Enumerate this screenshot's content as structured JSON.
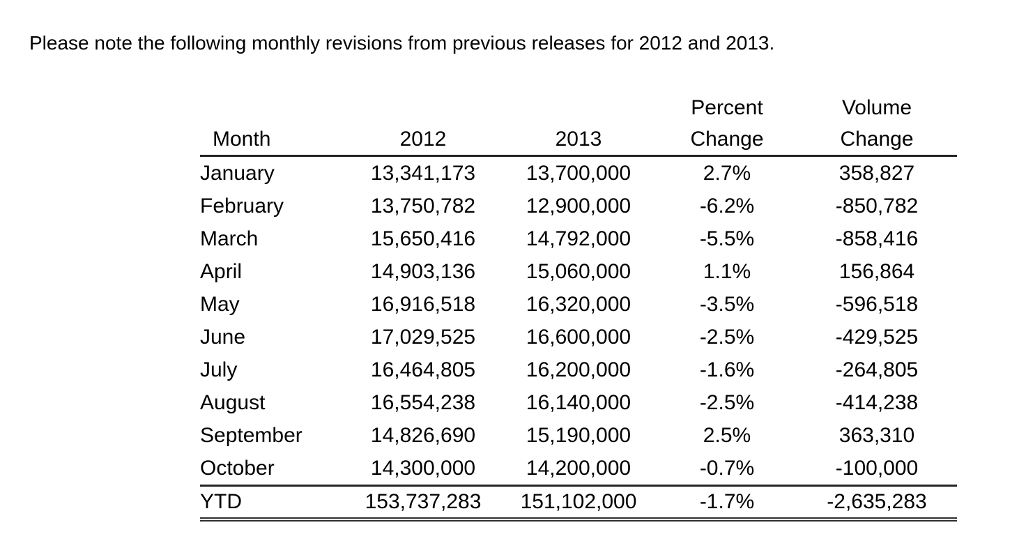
{
  "title": "Please note the following monthly revisions from previous releases for 2012 and 2013.",
  "table": {
    "headers": [
      {
        "line1": "",
        "line2": "Month"
      },
      {
        "line1": "",
        "line2": "2012"
      },
      {
        "line1": "",
        "line2": "2013"
      },
      {
        "line1": "Percent",
        "line2": "Change"
      },
      {
        "line1": "Volume",
        "line2": "Change"
      }
    ],
    "rows": [
      {
        "month": "January",
        "v2012": "13,341,173",
        "v2013": "13,700,000",
        "pct": "2.7%",
        "vol": "358,827"
      },
      {
        "month": "February",
        "v2012": "13,750,782",
        "v2013": "12,900,000",
        "pct": "-6.2%",
        "vol": "-850,782"
      },
      {
        "month": "March",
        "v2012": "15,650,416",
        "v2013": "14,792,000",
        "pct": "-5.5%",
        "vol": "-858,416"
      },
      {
        "month": "April",
        "v2012": "14,903,136",
        "v2013": "15,060,000",
        "pct": "1.1%",
        "vol": "156,864"
      },
      {
        "month": "May",
        "v2012": "16,916,518",
        "v2013": "16,320,000",
        "pct": "-3.5%",
        "vol": "-596,518"
      },
      {
        "month": "June",
        "v2012": "17,029,525",
        "v2013": "16,600,000",
        "pct": "-2.5%",
        "vol": "-429,525"
      },
      {
        "month": "July",
        "v2012": "16,464,805",
        "v2013": "16,200,000",
        "pct": "-1.6%",
        "vol": "-264,805"
      },
      {
        "month": "August",
        "v2012": "16,554,238",
        "v2013": "16,140,000",
        "pct": "-2.5%",
        "vol": "-414,238"
      },
      {
        "month": "September",
        "v2012": "14,826,690",
        "v2013": "15,190,000",
        "pct": "2.5%",
        "vol": "363,310"
      },
      {
        "month": "October",
        "v2012": "14,300,000",
        "v2013": "14,200,000",
        "pct": "-0.7%",
        "vol": "-100,000"
      }
    ],
    "total_row": {
      "month": "YTD",
      "v2012": "153,737,283",
      "v2013": "151,102,000",
      "pct": "-1.7%",
      "vol": "-2,635,283"
    },
    "text_color": "#000000",
    "rule_color": "#242424"
  }
}
